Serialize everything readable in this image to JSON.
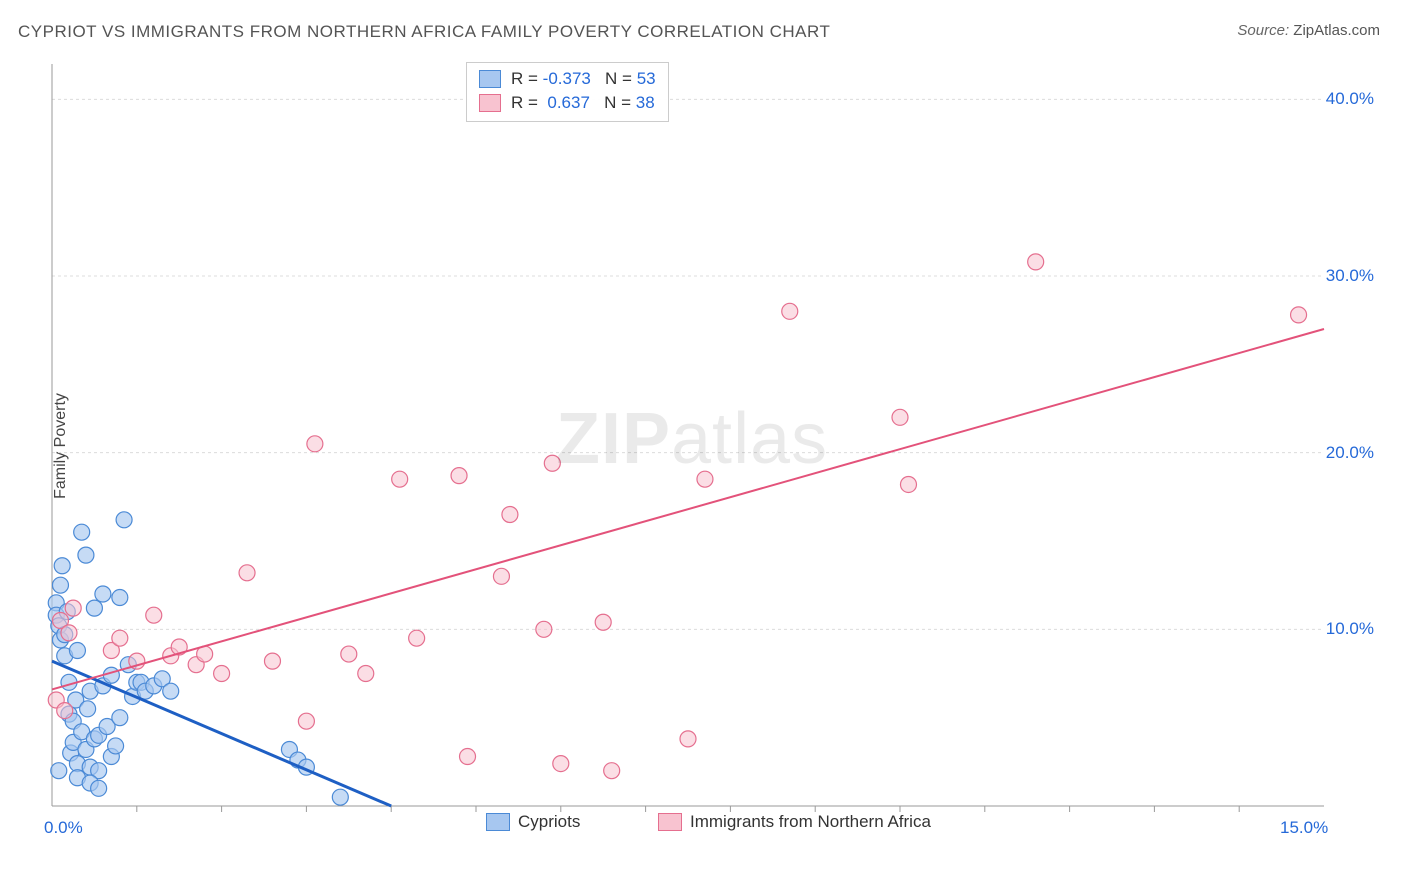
{
  "title": "CYPRIOT VS IMMIGRANTS FROM NORTHERN AFRICA FAMILY POVERTY CORRELATION CHART",
  "source_label": "Source: ",
  "source_value": "ZipAtlas.com",
  "y_axis_label": "Family Poverty",
  "watermark_bold": "ZIP",
  "watermark_light": "atlas",
  "chart": {
    "type": "scatter",
    "background_color": "#ffffff",
    "grid_color": "#dcdcdc",
    "axis_color": "#9a9a9a",
    "xlim": [
      0.0,
      15.0
    ],
    "ylim": [
      0.0,
      42.0
    ],
    "x_ticks": [
      0.0,
      15.0
    ],
    "x_tick_labels": [
      "0.0%",
      "15.0%"
    ],
    "y_ticks": [
      10.0,
      20.0,
      30.0,
      40.0
    ],
    "y_tick_labels": [
      "10.0%",
      "20.0%",
      "30.0%",
      "40.0%"
    ],
    "tick_label_color": "#2569d8",
    "tick_label_fontsize": 17,
    "minor_x_ticks": [
      1,
      2,
      3,
      4,
      5,
      6,
      7,
      8,
      9,
      10,
      11,
      12,
      13,
      14
    ],
    "series": [
      {
        "name": "Cypriots",
        "color_fill": "#a7c7f0",
        "color_stroke": "#4b8ad6",
        "marker_radius": 8,
        "marker_opacity": 0.65,
        "R": -0.373,
        "N": 53,
        "regression": {
          "x1": 0.0,
          "y1": 8.2,
          "x2": 4.0,
          "y2": 0.0,
          "color": "#1e5fc4",
          "width": 3
        },
        "points": [
          [
            0.05,
            11.5
          ],
          [
            0.05,
            10.8
          ],
          [
            0.08,
            10.2
          ],
          [
            0.1,
            12.5
          ],
          [
            0.1,
            9.4
          ],
          [
            0.12,
            13.6
          ],
          [
            0.15,
            8.5
          ],
          [
            0.15,
            9.7
          ],
          [
            0.18,
            11.0
          ],
          [
            0.2,
            7.0
          ],
          [
            0.2,
            5.2
          ],
          [
            0.22,
            3.0
          ],
          [
            0.25,
            3.6
          ],
          [
            0.25,
            4.8
          ],
          [
            0.28,
            6.0
          ],
          [
            0.3,
            2.4
          ],
          [
            0.3,
            8.8
          ],
          [
            0.35,
            15.5
          ],
          [
            0.35,
            4.2
          ],
          [
            0.4,
            3.2
          ],
          [
            0.4,
            14.2
          ],
          [
            0.42,
            5.5
          ],
          [
            0.45,
            2.2
          ],
          [
            0.45,
            6.5
          ],
          [
            0.5,
            11.2
          ],
          [
            0.5,
            3.8
          ],
          [
            0.55,
            2.0
          ],
          [
            0.55,
            4.0
          ],
          [
            0.6,
            6.8
          ],
          [
            0.6,
            12.0
          ],
          [
            0.65,
            4.5
          ],
          [
            0.7,
            2.8
          ],
          [
            0.7,
            7.4
          ],
          [
            0.75,
            3.4
          ],
          [
            0.8,
            5.0
          ],
          [
            0.8,
            11.8
          ],
          [
            0.85,
            16.2
          ],
          [
            0.9,
            8.0
          ],
          [
            0.95,
            6.2
          ],
          [
            1.0,
            7.0
          ],
          [
            1.05,
            7.0
          ],
          [
            1.1,
            6.5
          ],
          [
            1.2,
            6.8
          ],
          [
            1.3,
            7.2
          ],
          [
            1.4,
            6.5
          ],
          [
            0.3,
            1.6
          ],
          [
            0.45,
            1.3
          ],
          [
            0.55,
            1.0
          ],
          [
            2.8,
            3.2
          ],
          [
            2.9,
            2.6
          ],
          [
            3.0,
            2.2
          ],
          [
            3.4,
            0.5
          ],
          [
            0.08,
            2.0
          ]
        ]
      },
      {
        "name": "Immigrants from Northern Africa",
        "color_fill": "#f8c3d0",
        "color_stroke": "#e56f8f",
        "marker_radius": 8,
        "marker_opacity": 0.55,
        "R": 0.637,
        "N": 38,
        "regression": {
          "x1": 0.0,
          "y1": 6.6,
          "x2": 15.0,
          "y2": 27.0,
          "color": "#e3527a",
          "width": 2
        },
        "points": [
          [
            0.1,
            10.5
          ],
          [
            0.2,
            9.8
          ],
          [
            0.25,
            11.2
          ],
          [
            0.7,
            8.8
          ],
          [
            0.8,
            9.5
          ],
          [
            1.0,
            8.2
          ],
          [
            1.2,
            10.8
          ],
          [
            1.4,
            8.5
          ],
          [
            1.5,
            9.0
          ],
          [
            1.7,
            8.0
          ],
          [
            1.8,
            8.6
          ],
          [
            2.0,
            7.5
          ],
          [
            2.3,
            13.2
          ],
          [
            2.6,
            8.2
          ],
          [
            3.0,
            4.8
          ],
          [
            3.1,
            20.5
          ],
          [
            3.5,
            8.6
          ],
          [
            3.7,
            7.5
          ],
          [
            4.1,
            18.5
          ],
          [
            4.3,
            9.5
          ],
          [
            4.8,
            18.7
          ],
          [
            4.9,
            2.8
          ],
          [
            5.3,
            13.0
          ],
          [
            5.4,
            16.5
          ],
          [
            5.8,
            10.0
          ],
          [
            5.9,
            19.4
          ],
          [
            6.0,
            2.4
          ],
          [
            6.5,
            10.4
          ],
          [
            6.6,
            2.0
          ],
          [
            7.5,
            3.8
          ],
          [
            7.7,
            18.5
          ],
          [
            8.7,
            28.0
          ],
          [
            10.0,
            22.0
          ],
          [
            10.1,
            18.2
          ],
          [
            11.6,
            30.8
          ],
          [
            14.7,
            27.8
          ],
          [
            0.05,
            6.0
          ],
          [
            0.15,
            5.4
          ]
        ]
      }
    ],
    "stats_box": {
      "border_color": "#cccccc",
      "rows": [
        {
          "swatch_fill": "#a7c7f0",
          "swatch_stroke": "#4b8ad6",
          "r_label": "R = ",
          "r_value": "-0.373",
          "n_label": "   N = ",
          "n_value": "53"
        },
        {
          "swatch_fill": "#f8c3d0",
          "swatch_stroke": "#e56f8f",
          "r_label": "R = ",
          "r_value": " 0.637",
          "n_label": "   N = ",
          "n_value": "38"
        }
      ]
    },
    "legend": [
      {
        "swatch_fill": "#a7c7f0",
        "swatch_stroke": "#4b8ad6",
        "label": "Cypriots"
      },
      {
        "swatch_fill": "#f8c3d0",
        "swatch_stroke": "#e56f8f",
        "label": "Immigrants from Northern Africa"
      }
    ]
  }
}
